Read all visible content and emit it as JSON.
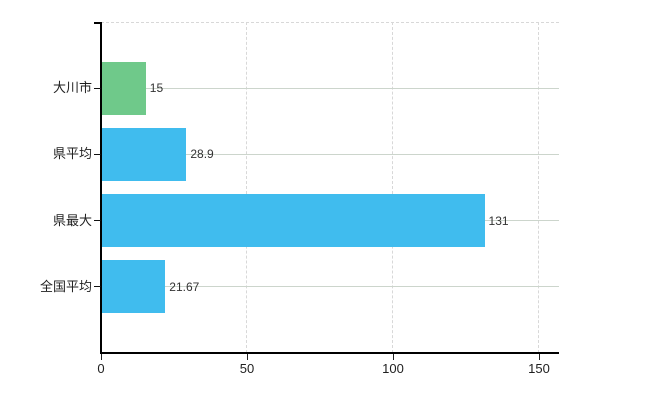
{
  "chart_data": {
    "type": "bar",
    "orientation": "horizontal",
    "title": "",
    "xlabel": "",
    "ylabel": "",
    "categories": [
      "大川市",
      "県平均",
      "県最大",
      "全国平均"
    ],
    "values": [
      15,
      28.9,
      131,
      21.67
    ],
    "value_labels": [
      "15",
      "28.9",
      "131",
      "21.67"
    ],
    "bar_colors": [
      "#6fc98a",
      "#40bcee",
      "#40bcee",
      "#40bcee"
    ],
    "x_axis": {
      "ticks": [
        0,
        50,
        100,
        150
      ],
      "tick_labels": [
        "0",
        "50",
        "100",
        "150"
      ],
      "range_max": 157
    },
    "legend": "none",
    "grid": {
      "vertical_style": "dashed",
      "horizontal_style": "solid"
    }
  },
  "colors": {
    "bar_green": "#6fc98a",
    "bar_blue": "#40bcee",
    "axis_line": "#000000",
    "grid_horizontal": "#ccd5cc",
    "grid_vertical": "#d8d8d8",
    "category_text": "#1f1f1f",
    "value_text": "#333333",
    "background": "#ffffff"
  }
}
